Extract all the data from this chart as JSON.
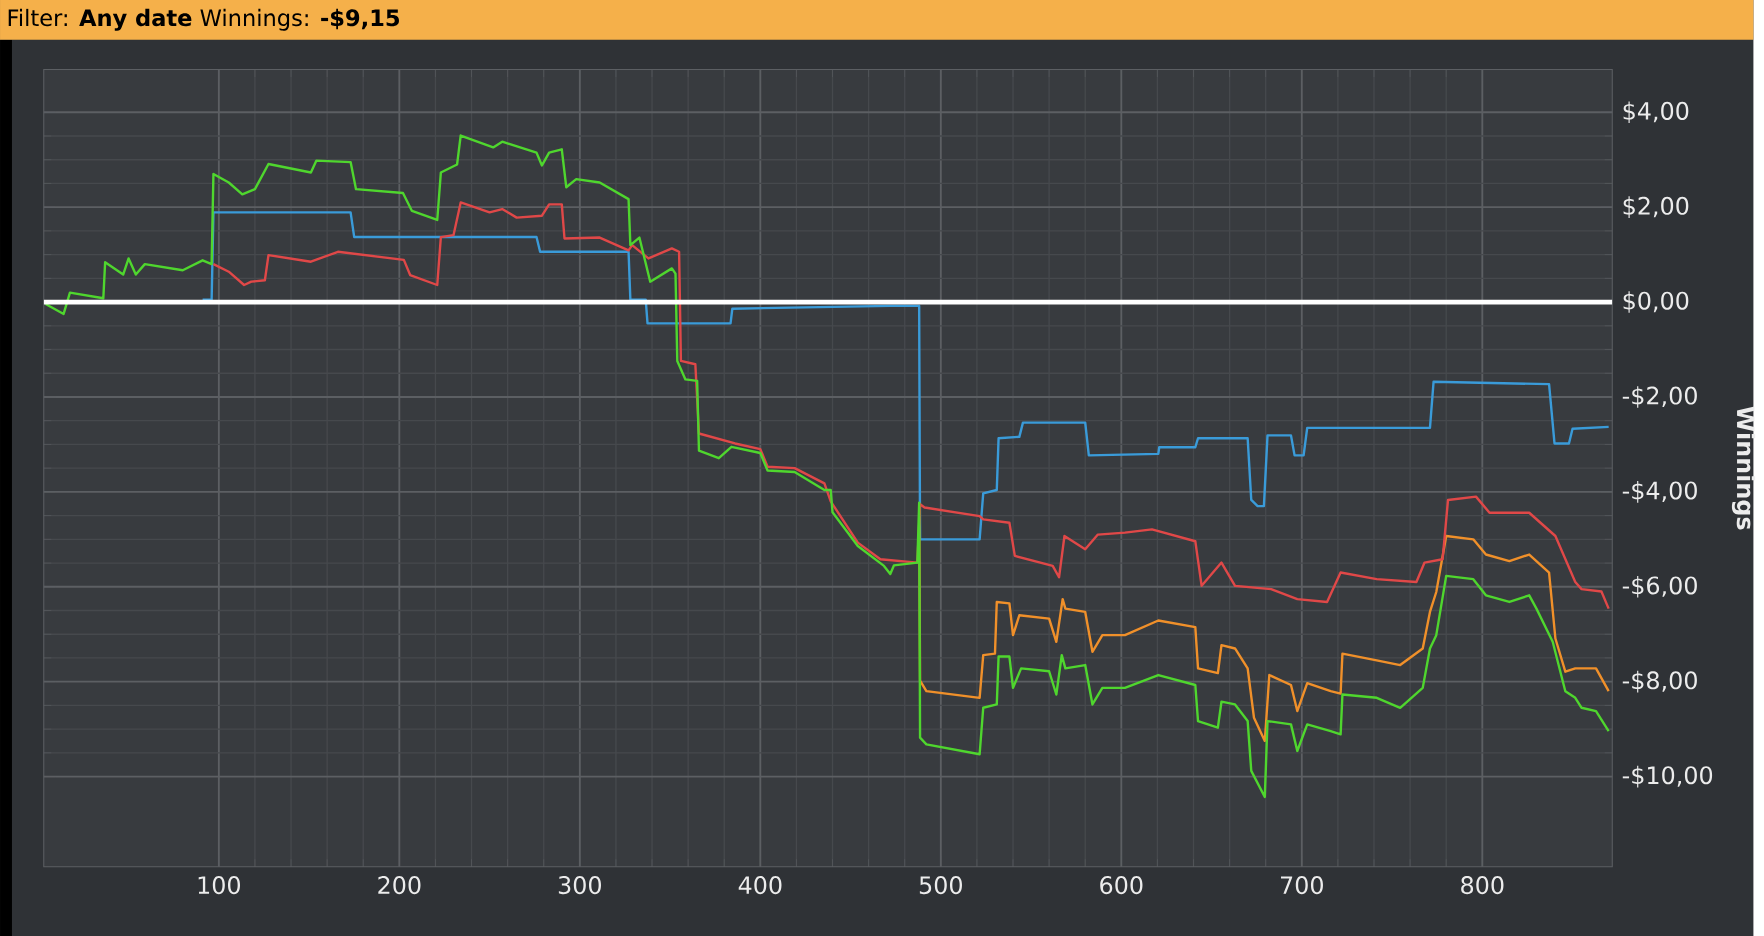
{
  "chart_data": {
    "type": "line",
    "title": "Filter: **Any date** Winnings: **-$9,15**",
    "ylabel": "Winnings",
    "xlim": [
      3,
      872
    ],
    "ylim": [
      -11.9,
      4.9
    ],
    "xticks": [
      100,
      200,
      300,
      400,
      500,
      600,
      700,
      800
    ],
    "yticks": [
      {
        "value": -10,
        "label": "-$10,00"
      },
      {
        "value": -8,
        "label": "-$8,00"
      },
      {
        "value": -6,
        "label": "-$6,00"
      },
      {
        "value": -4,
        "label": "-$4,00"
      },
      {
        "value": -2,
        "label": "-$2,00"
      },
      {
        "value": 0,
        "label": "$0,00"
      },
      {
        "value": 2,
        "label": "$2,00"
      },
      {
        "value": 4,
        "label": "$4,00"
      }
    ],
    "grid": true,
    "ref_lines": [
      {
        "axis": "y",
        "value": 0,
        "color": "#ffffff"
      }
    ],
    "series": [
      {
        "color": "#3a9bd9",
        "x": [
          91,
          96,
          97,
          173,
          175,
          276,
          278,
          327,
          328,
          336.5,
          337.5,
          383.5,
          384.5,
          472,
          488,
          488.5,
          521.5,
          523.5,
          531,
          532,
          543.5,
          545.5,
          580,
          582,
          620.5,
          621,
          641,
          642.5,
          670,
          672,
          675.5,
          679,
          681,
          694,
          696,
          701,
          703,
          771,
          773,
          837,
          840,
          848,
          850,
          870
        ],
        "values": [
          0.05,
          0.05,
          1.89,
          1.89,
          1.37,
          1.37,
          1.06,
          1.06,
          0.05,
          0.05,
          -0.45,
          -0.45,
          -0.14,
          -0.08,
          -0.08,
          -5.0,
          -5.0,
          -4.03,
          -3.96,
          -2.87,
          -2.84,
          -2.54,
          -2.54,
          -3.23,
          -3.2,
          -3.06,
          -3.06,
          -2.87,
          -2.87,
          -4.17,
          -4.3,
          -4.3,
          -2.81,
          -2.81,
          -3.23,
          -3.23,
          -2.65,
          -2.65,
          -1.68,
          -1.73,
          -2.98,
          -2.98,
          -2.67,
          -2.63
        ]
      },
      {
        "color": "#f0902a",
        "x": [
          488,
          488.5,
          492,
          521.5,
          523.5,
          530,
          531,
          538,
          540,
          543.5,
          560,
          564,
          567.5,
          569,
          580,
          584,
          589.5,
          602,
          620.5,
          641,
          642.5,
          653.5,
          655.5,
          663,
          670,
          673.5,
          679.5,
          682,
          694,
          697.5,
          703,
          716,
          721.5,
          722.5,
          741.5,
          754.5,
          767,
          771,
          774.5,
          780,
          795,
          802,
          815,
          826,
          837,
          840.5,
          846,
          851.5,
          863,
          870
        ],
        "values": [
          -4.23,
          -7.98,
          -8.2,
          -8.34,
          -7.44,
          -7.41,
          -6.32,
          -6.35,
          -7.02,
          -6.6,
          -6.67,
          -7.16,
          -6.26,
          -6.46,
          -6.53,
          -7.37,
          -7.02,
          -7.02,
          -6.71,
          -6.85,
          -7.72,
          -7.82,
          -7.23,
          -7.3,
          -7.72,
          -8.76,
          -9.25,
          -7.86,
          -8.07,
          -8.62,
          -8.03,
          -8.2,
          -8.25,
          -7.41,
          -7.55,
          -7.65,
          -7.3,
          -6.53,
          -6.11,
          -4.93,
          -5.0,
          -5.32,
          -5.46,
          -5.32,
          -5.7,
          -7.09,
          -7.79,
          -7.72,
          -7.72,
          -8.2
        ]
      },
      {
        "color": "#e04848",
        "x": [
          97,
          105.5,
          114,
          118,
          125.5,
          127.5,
          151,
          166,
          202.5,
          206,
          221,
          223,
          230,
          234,
          250,
          257,
          265,
          279,
          283,
          290,
          291.5,
          311,
          327,
          329,
          338,
          351,
          355,
          356,
          364,
          366,
          386,
          400,
          404,
          419,
          435.5,
          439,
          454,
          466.5,
          487,
          488.5,
          491,
          521.5,
          523.5,
          538,
          541,
          562,
          565.5,
          568.5,
          580,
          587,
          602,
          617,
          641,
          644.5,
          655.5,
          663,
          683,
          697.5,
          714,
          721.5,
          741.5,
          763.5,
          768,
          778,
          781,
          796.5,
          804,
          826,
          840.5,
          851.5,
          855,
          866,
          870
        ],
        "values": [
          0.8,
          0.64,
          0.36,
          0.43,
          0.46,
          0.99,
          0.85,
          1.06,
          0.89,
          0.57,
          0.36,
          1.37,
          1.41,
          2.1,
          1.89,
          1.96,
          1.78,
          1.82,
          2.06,
          2.06,
          1.34,
          1.36,
          1.09,
          1.2,
          0.92,
          1.13,
          1.06,
          -1.24,
          -1.31,
          -2.77,
          -2.98,
          -3.1,
          -3.47,
          -3.5,
          -3.82,
          -4.2,
          -5.07,
          -5.42,
          -5.49,
          -4.26,
          -4.33,
          -4.51,
          -4.58,
          -4.65,
          -5.35,
          -5.56,
          -5.8,
          -4.93,
          -5.21,
          -4.9,
          -4.86,
          -4.79,
          -5.04,
          -5.98,
          -5.49,
          -5.98,
          -6.05,
          -6.26,
          -6.32,
          -5.7,
          -5.84,
          -5.9,
          -5.49,
          -5.42,
          -4.17,
          -4.1,
          -4.44,
          -4.44,
          -4.93,
          -5.9,
          -6.05,
          -6.1,
          -6.46
        ]
      },
      {
        "color": "#4fd62e",
        "x": [
          4,
          14,
          17.5,
          36,
          37,
          47,
          50,
          54,
          59,
          80,
          91,
          96,
          97,
          105.5,
          113,
          120,
          127.5,
          151,
          154,
          173,
          176,
          202,
          207,
          221,
          223,
          232,
          234,
          252,
          257,
          276,
          279,
          283,
          290,
          292.5,
          298,
          311,
          327,
          328,
          333,
          339,
          351,
          353,
          354,
          358.5,
          365,
          366,
          377,
          384,
          400,
          404,
          419,
          435.5,
          439,
          440,
          454,
          468.5,
          472,
          474,
          487,
          488,
          488.5,
          492,
          521.5,
          523.5,
          531,
          532,
          538,
          540,
          544.5,
          560,
          564,
          567,
          569,
          580,
          584,
          589.5,
          602,
          620.5,
          641,
          642.5,
          653.5,
          655.5,
          663,
          670,
          672,
          679.5,
          681,
          694,
          697.5,
          703,
          716,
          721.5,
          722.5,
          741.5,
          754.5,
          767,
          771,
          774.5,
          780,
          795,
          802,
          815,
          826,
          830,
          839,
          846,
          851.5,
          855,
          863,
          870
        ],
        "values": [
          -0.04,
          -0.25,
          0.2,
          0.08,
          0.84,
          0.58,
          0.92,
          0.58,
          0.8,
          0.67,
          0.88,
          0.8,
          2.7,
          2.52,
          2.27,
          2.38,
          2.91,
          2.73,
          2.98,
          2.95,
          2.38,
          2.3,
          1.92,
          1.73,
          2.73,
          2.9,
          3.51,
          3.26,
          3.38,
          3.15,
          2.88,
          3.15,
          3.22,
          2.42,
          2.59,
          2.52,
          2.17,
          1.2,
          1.36,
          0.43,
          0.71,
          0.6,
          -1.24,
          -1.63,
          -1.66,
          -3.13,
          -3.29,
          -3.05,
          -3.18,
          -3.55,
          -3.58,
          -3.96,
          -3.96,
          -4.43,
          -5.14,
          -5.56,
          -5.73,
          -5.55,
          -5.49,
          -4.23,
          -9.18,
          -9.32,
          -9.53,
          -8.55,
          -8.48,
          -7.47,
          -7.47,
          -8.13,
          -7.72,
          -7.78,
          -8.27,
          -7.44,
          -7.72,
          -7.65,
          -8.48,
          -8.13,
          -8.13,
          -7.86,
          -8.07,
          -8.83,
          -8.97,
          -8.42,
          -8.48,
          -8.83,
          -9.88,
          -10.43,
          -8.83,
          -8.9,
          -9.46,
          -8.9,
          -9.04,
          -9.11,
          -8.27,
          -8.34,
          -8.55,
          -8.13,
          -7.3,
          -7.02,
          -5.77,
          -5.84,
          -6.18,
          -6.32,
          -6.18,
          -6.46,
          -7.16,
          -8.2,
          -8.34,
          -8.55,
          -8.62,
          -9.04
        ]
      }
    ]
  }
}
